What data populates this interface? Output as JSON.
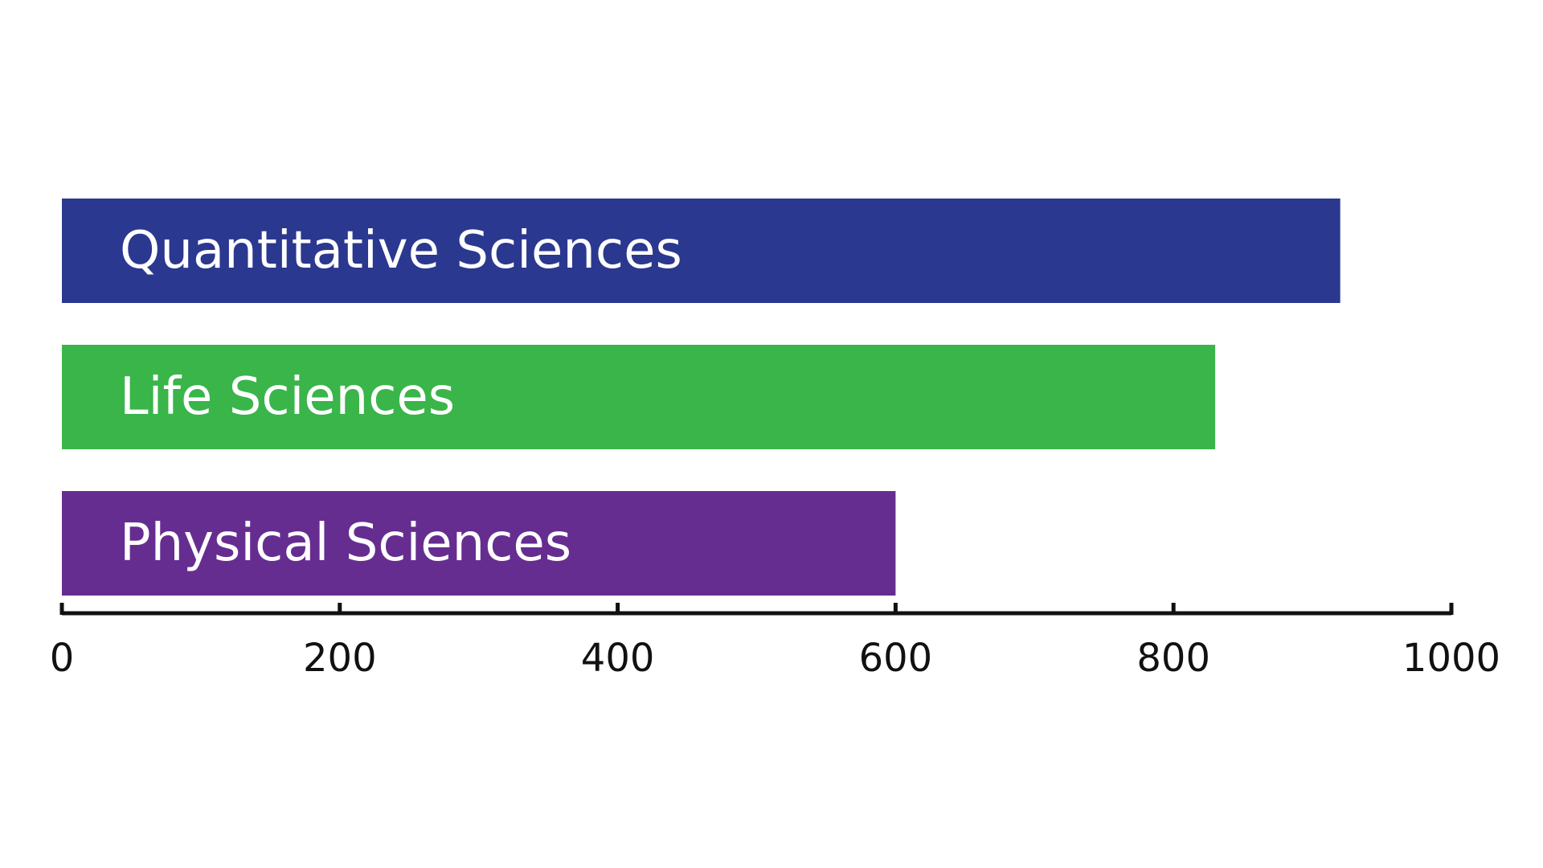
{
  "chart_data": {
    "type": "bar",
    "orientation": "horizontal",
    "categories": [
      "Quantitative Sciences",
      "Life Sciences",
      "Physical Sciences"
    ],
    "values": [
      920,
      830,
      600
    ],
    "colors": [
      "#2B388F",
      "#39B54A",
      "#662D91"
    ],
    "xlim": [
      0,
      1000
    ],
    "ticks": [
      0,
      200,
      400,
      600,
      800,
      1000
    ],
    "tick_labels": [
      "0",
      "200",
      "400",
      "600",
      "800",
      "1000"
    ],
    "grid": false,
    "legend": "none"
  }
}
